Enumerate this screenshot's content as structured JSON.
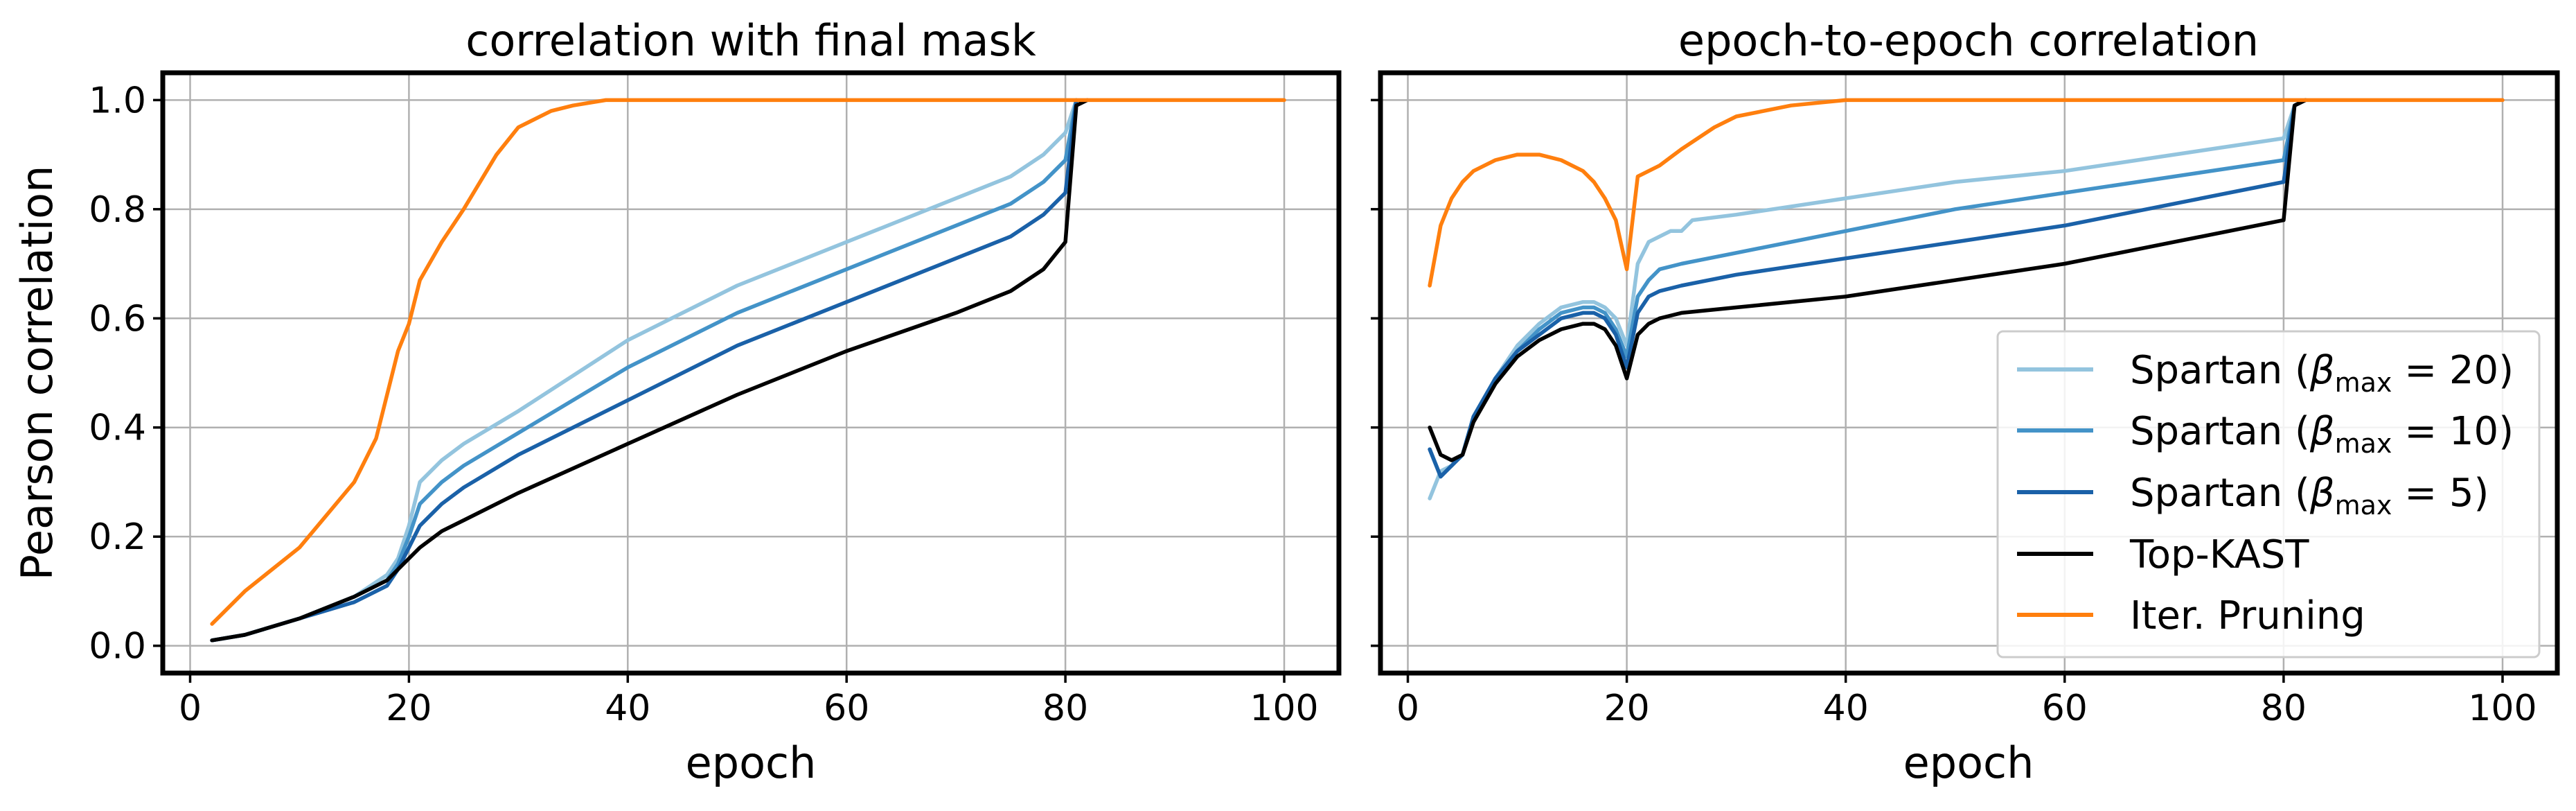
{
  "chart_data": [
    {
      "type": "line",
      "title": "correlation with final mask",
      "xlabel": "epoch",
      "ylabel": "Pearson correlation",
      "xlim": [
        -2.5,
        105
      ],
      "ylim": [
        -0.05,
        1.05
      ],
      "xticks": [
        0,
        20,
        40,
        60,
        80,
        100
      ],
      "yticks": [
        0.0,
        0.2,
        0.4,
        0.6,
        0.8,
        1.0
      ],
      "xtick_labels": [
        "0",
        "20",
        "40",
        "60",
        "80",
        "100"
      ],
      "ytick_labels": [
        "0.0",
        "0.2",
        "0.4",
        "0.6",
        "0.8",
        "1.0"
      ],
      "grid": true,
      "series": [
        {
          "key": "s20",
          "color": "#93c4de",
          "x": [
            2,
            5,
            10,
            15,
            18,
            19,
            20,
            21,
            23,
            25,
            30,
            40,
            50,
            60,
            70,
            75,
            78,
            80,
            81
          ],
          "y": [
            0.01,
            0.02,
            0.05,
            0.09,
            0.13,
            0.16,
            0.22,
            0.3,
            0.34,
            0.37,
            0.43,
            0.56,
            0.66,
            0.74,
            0.82,
            0.86,
            0.9,
            0.94,
            1.0
          ]
        },
        {
          "key": "s10",
          "color": "#4393c8",
          "x": [
            2,
            5,
            10,
            15,
            18,
            19,
            20,
            21,
            23,
            25,
            30,
            40,
            50,
            60,
            70,
            75,
            78,
            80,
            81
          ],
          "y": [
            0.01,
            0.02,
            0.05,
            0.09,
            0.12,
            0.15,
            0.2,
            0.26,
            0.3,
            0.33,
            0.39,
            0.51,
            0.61,
            0.69,
            0.77,
            0.81,
            0.85,
            0.89,
            1.0
          ]
        },
        {
          "key": "s5",
          "color": "#1a61a8",
          "x": [
            2,
            5,
            10,
            15,
            18,
            19,
            20,
            21,
            23,
            25,
            30,
            40,
            50,
            60,
            70,
            75,
            78,
            80,
            81
          ],
          "y": [
            0.01,
            0.02,
            0.05,
            0.08,
            0.11,
            0.14,
            0.18,
            0.22,
            0.26,
            0.29,
            0.35,
            0.45,
            0.55,
            0.63,
            0.71,
            0.75,
            0.79,
            0.83,
            1.0
          ]
        },
        {
          "key": "topkast",
          "color": "#000000",
          "x": [
            2,
            5,
            10,
            15,
            18,
            20,
            21,
            23,
            25,
            30,
            40,
            50,
            60,
            70,
            75,
            78,
            80,
            81,
            82
          ],
          "y": [
            0.01,
            0.02,
            0.05,
            0.09,
            0.12,
            0.16,
            0.18,
            0.21,
            0.23,
            0.28,
            0.37,
            0.46,
            0.54,
            0.61,
            0.65,
            0.69,
            0.74,
            0.99,
            1.0
          ]
        },
        {
          "key": "iter",
          "color": "#ff7f0e",
          "x": [
            2,
            5,
            10,
            15,
            17,
            18,
            19,
            20,
            21,
            23,
            25,
            28,
            30,
            33,
            35,
            38,
            40,
            45,
            50,
            100
          ],
          "y": [
            0.04,
            0.1,
            0.18,
            0.3,
            0.38,
            0.46,
            0.54,
            0.59,
            0.67,
            0.74,
            0.8,
            0.9,
            0.95,
            0.98,
            0.99,
            1.0,
            1.0,
            1.0,
            1.0,
            1.0
          ]
        }
      ]
    },
    {
      "type": "line",
      "title": "epoch-to-epoch correlation",
      "xlabel": "epoch",
      "ylabel": "",
      "xlim": [
        -2.5,
        105
      ],
      "ylim": [
        -0.05,
        1.05
      ],
      "xticks": [
        0,
        20,
        40,
        60,
        80,
        100
      ],
      "yticks": [
        0.0,
        0.2,
        0.4,
        0.6,
        0.8,
        1.0
      ],
      "xtick_labels": [
        "0",
        "20",
        "40",
        "60",
        "80",
        "100"
      ],
      "grid": true,
      "legend_position": "bottom-right",
      "series": [
        {
          "key": "s20",
          "name": "Spartan (β_max = 20)",
          "color": "#93c4de",
          "x": [
            2,
            3,
            4,
            5,
            6,
            8,
            10,
            12,
            14,
            16,
            17,
            18,
            19,
            20,
            21,
            22,
            23,
            24,
            25,
            26,
            30,
            40,
            50,
            60,
            70,
            80,
            81,
            82
          ],
          "y": [
            0.27,
            0.32,
            0.33,
            0.35,
            0.42,
            0.49,
            0.55,
            0.59,
            0.62,
            0.63,
            0.63,
            0.62,
            0.6,
            0.55,
            0.7,
            0.74,
            0.75,
            0.76,
            0.76,
            0.78,
            0.79,
            0.82,
            0.85,
            0.87,
            0.9,
            0.93,
            0.99,
            1.0
          ]
        },
        {
          "key": "s10",
          "name": "Spartan (β_max = 10)",
          "color": "#4393c8",
          "x": [
            2,
            3,
            4,
            5,
            6,
            8,
            10,
            12,
            14,
            16,
            17,
            18,
            19,
            20,
            21,
            22,
            23,
            25,
            30,
            40,
            50,
            60,
            70,
            80,
            81,
            82
          ],
          "y": [
            0.36,
            0.31,
            0.33,
            0.35,
            0.42,
            0.49,
            0.54,
            0.58,
            0.61,
            0.62,
            0.62,
            0.61,
            0.58,
            0.53,
            0.64,
            0.67,
            0.69,
            0.7,
            0.72,
            0.76,
            0.8,
            0.83,
            0.86,
            0.89,
            0.99,
            1.0
          ]
        },
        {
          "key": "s5",
          "name": "Spartan (β_max = 5)",
          "color": "#1a61a8",
          "x": [
            2,
            3,
            4,
            5,
            6,
            8,
            10,
            12,
            14,
            16,
            17,
            18,
            19,
            20,
            21,
            22,
            23,
            25,
            30,
            40,
            50,
            60,
            70,
            80,
            81,
            82
          ],
          "y": [
            0.36,
            0.31,
            0.33,
            0.35,
            0.42,
            0.49,
            0.54,
            0.57,
            0.6,
            0.61,
            0.61,
            0.6,
            0.57,
            0.51,
            0.61,
            0.64,
            0.65,
            0.66,
            0.68,
            0.71,
            0.74,
            0.77,
            0.81,
            0.85,
            0.99,
            1.0
          ]
        },
        {
          "key": "topkast",
          "name": "Top-KAST",
          "color": "#000000",
          "x": [
            2,
            3,
            4,
            5,
            6,
            8,
            10,
            12,
            14,
            16,
            17,
            18,
            19,
            20,
            21,
            22,
            23,
            25,
            30,
            40,
            50,
            60,
            70,
            80,
            81,
            82
          ],
          "y": [
            0.4,
            0.35,
            0.34,
            0.35,
            0.41,
            0.48,
            0.53,
            0.56,
            0.58,
            0.59,
            0.59,
            0.58,
            0.55,
            0.49,
            0.57,
            0.59,
            0.6,
            0.61,
            0.62,
            0.64,
            0.67,
            0.7,
            0.74,
            0.78,
            0.99,
            1.0
          ]
        },
        {
          "key": "iter",
          "name": "Iter. Pruning",
          "color": "#ff7f0e",
          "x": [
            2,
            3,
            4,
            5,
            6,
            8,
            10,
            12,
            14,
            16,
            17,
            18,
            19,
            20,
            21,
            23,
            25,
            28,
            30,
            35,
            40,
            50,
            100
          ],
          "y": [
            0.66,
            0.77,
            0.82,
            0.85,
            0.87,
            0.89,
            0.9,
            0.9,
            0.89,
            0.87,
            0.85,
            0.82,
            0.78,
            0.69,
            0.86,
            0.88,
            0.91,
            0.95,
            0.97,
            0.99,
            1.0,
            1.0,
            1.0
          ]
        }
      ]
    }
  ]
}
